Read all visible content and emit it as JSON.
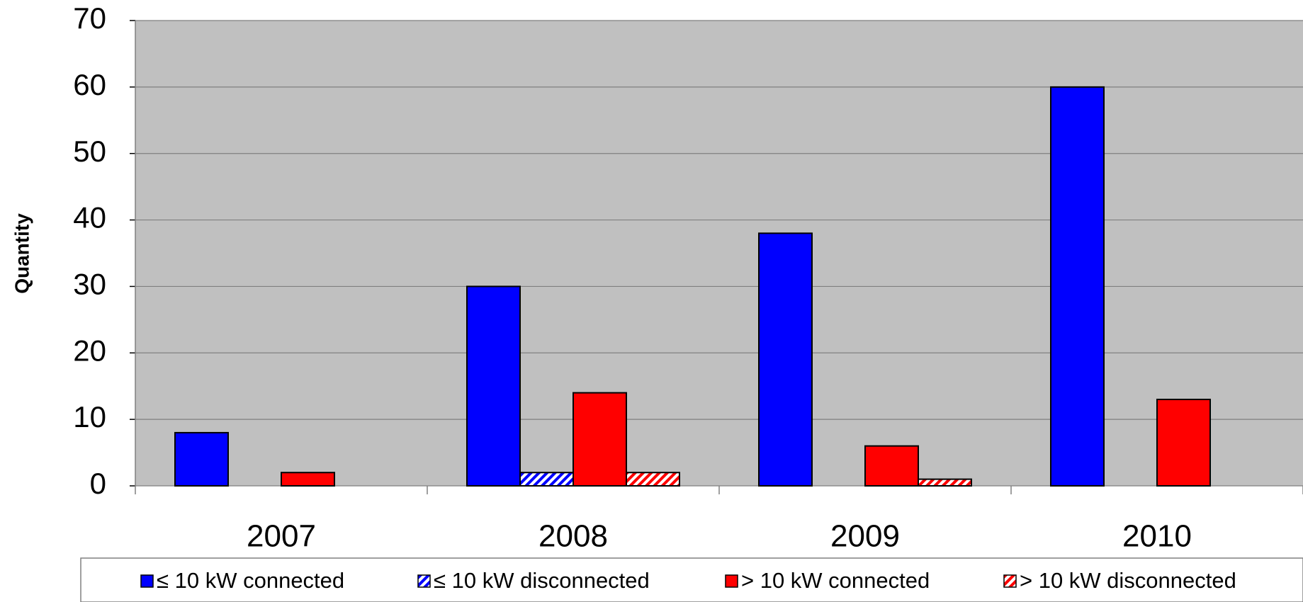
{
  "chart_data": {
    "type": "bar",
    "y_label": "Quantity",
    "categories": [
      "2007",
      "2008",
      "2009",
      "2010"
    ],
    "series": [
      {
        "name": "≤ 10 kW connected",
        "color": "#0000ff",
        "hatched": false,
        "values": [
          8,
          30,
          38,
          60
        ]
      },
      {
        "name": "≤ 10 kW disconnected",
        "color": "#0000ff",
        "hatched": true,
        "values": [
          0,
          2,
          0,
          0
        ]
      },
      {
        "name": "> 10 kW connected",
        "color": "#ff0000",
        "hatched": false,
        "values": [
          2,
          14,
          6,
          13
        ]
      },
      {
        "name": "> 10 kW disconnected",
        "color": "#ff0000",
        "hatched": true,
        "values": [
          0,
          2,
          1,
          0
        ]
      }
    ],
    "ylim": [
      0,
      70
    ],
    "yticks": [
      0,
      10,
      20,
      30,
      40,
      50,
      60,
      70
    ],
    "grid": true,
    "legend": "bottom"
  }
}
